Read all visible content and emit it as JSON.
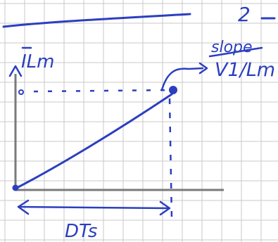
{
  "colors": {
    "ink": "#2b3fbf",
    "grid": "#c9c9c9",
    "axis": "#7a7a7a",
    "background": "#ffffff"
  },
  "labels": {
    "y_axis": "ILm",
    "y_axis_overbar": "-",
    "slope_word": "slope",
    "slope_value": "V1/Lm",
    "duration": "DTs",
    "corner_mark": "2"
  }
}
